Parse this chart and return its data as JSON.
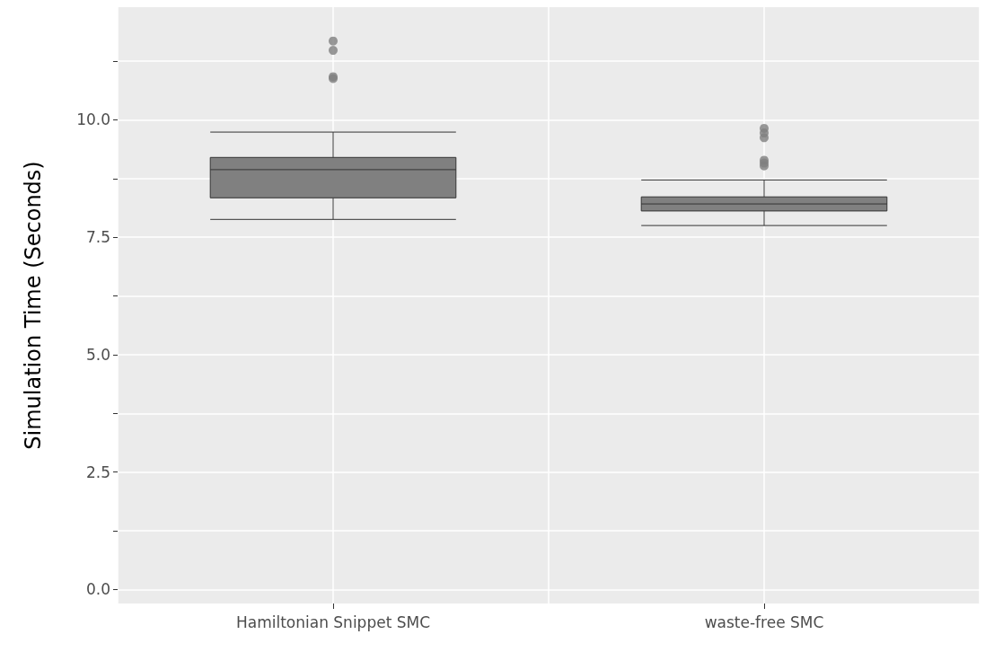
{
  "chart_data": {
    "type": "box",
    "ylabel": "Simulation Time (Seconds)",
    "categories": [
      "Hamiltonian Snippet SMC",
      "waste-free SMC"
    ],
    "boxes": [
      {
        "low": 7.88,
        "q1": 8.34,
        "median": 8.94,
        "q3": 9.2,
        "high": 9.74,
        "outliers": [
          11.68,
          11.48,
          10.92,
          10.88
        ]
      },
      {
        "low": 7.75,
        "q1": 8.06,
        "median": 8.21,
        "q3": 8.36,
        "high": 8.72,
        "outliers": [
          9.82,
          9.72,
          9.62,
          9.14,
          9.08,
          9.02
        ]
      }
    ],
    "color": "#808080",
    "ylim": [
      -0.3,
      12.4
    ],
    "yticks": [
      {
        "value": 0,
        "label": "0.0"
      },
      {
        "value": 1.25,
        "label": null
      },
      {
        "value": 2.5,
        "label": "2.5"
      },
      {
        "value": 3.75,
        "label": null
      },
      {
        "value": 5,
        "label": "5.0"
      },
      {
        "value": 6.25,
        "label": null
      },
      {
        "value": 7.5,
        "label": "7.5"
      },
      {
        "value": 8.75,
        "label": null
      },
      {
        "value": 10,
        "label": "10.0"
      },
      {
        "value": 11.25,
        "label": null
      }
    ],
    "grid": true
  }
}
